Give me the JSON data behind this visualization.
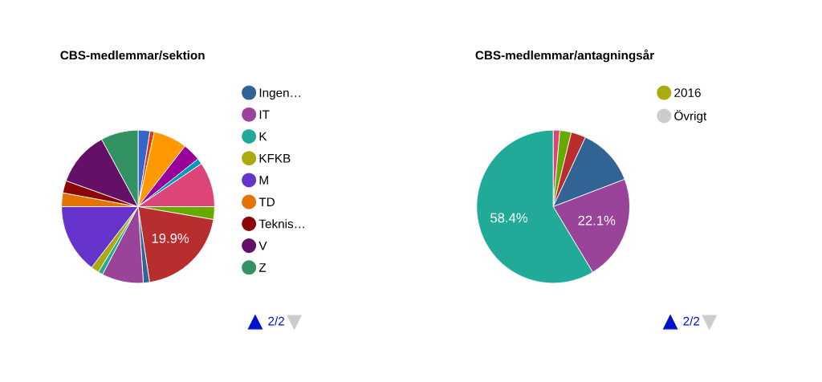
{
  "chart_data": [
    {
      "type": "pie",
      "title": "CBS-medlemmar/sektion",
      "categories": [
        null,
        null,
        null,
        null,
        null,
        null,
        null,
        null,
        "Ingen…",
        "IT",
        "K",
        "KFKB",
        "M",
        "TD",
        "Teknis…",
        "V",
        "Z"
      ],
      "values": [
        2.5,
        0.9,
        7.1,
        3.8,
        1.2,
        9.5,
        2.7,
        19.9,
        1.3,
        8.8,
        1.0,
        1.7,
        14.6,
        2.9,
        2.6,
        11.6,
        7.9
      ],
      "colors": [
        "#3366cc",
        "#dc3912",
        "#ff9900",
        "#990099",
        "#0099c6",
        "#dd4477",
        "#66aa00",
        "#b82e2e",
        "#316395",
        "#994499",
        "#22aa99",
        "#aaaa11",
        "#6633cc",
        "#e67300",
        "#8b0707",
        "#651067",
        "#329262"
      ],
      "value_labels": [
        null,
        null,
        null,
        null,
        null,
        null,
        null,
        "19.9%",
        null,
        null,
        null,
        null,
        null,
        null,
        null,
        null,
        null
      ],
      "legend": "right",
      "annotations": [
        "2/2"
      ]
    },
    {
      "type": "pie",
      "title": "CBS-medlemmar/antagningsår",
      "categories": [
        null,
        null,
        null,
        null,
        null,
        null,
        "2016",
        "Övrigt"
      ],
      "values": [
        1.4,
        2.4,
        3.1,
        12.2,
        22.1,
        58.4,
        null,
        null
      ],
      "colors": [
        "#dd4477",
        "#66aa00",
        "#b82e2e",
        "#316395",
        "#994499",
        "#22aa99",
        "#aaaa11",
        "#cccccc"
      ],
      "value_labels": [
        null,
        null,
        null,
        null,
        "22.1%",
        "58.4%",
        null,
        null
      ],
      "legend": "right",
      "annotations": [
        "2/2"
      ]
    }
  ]
}
